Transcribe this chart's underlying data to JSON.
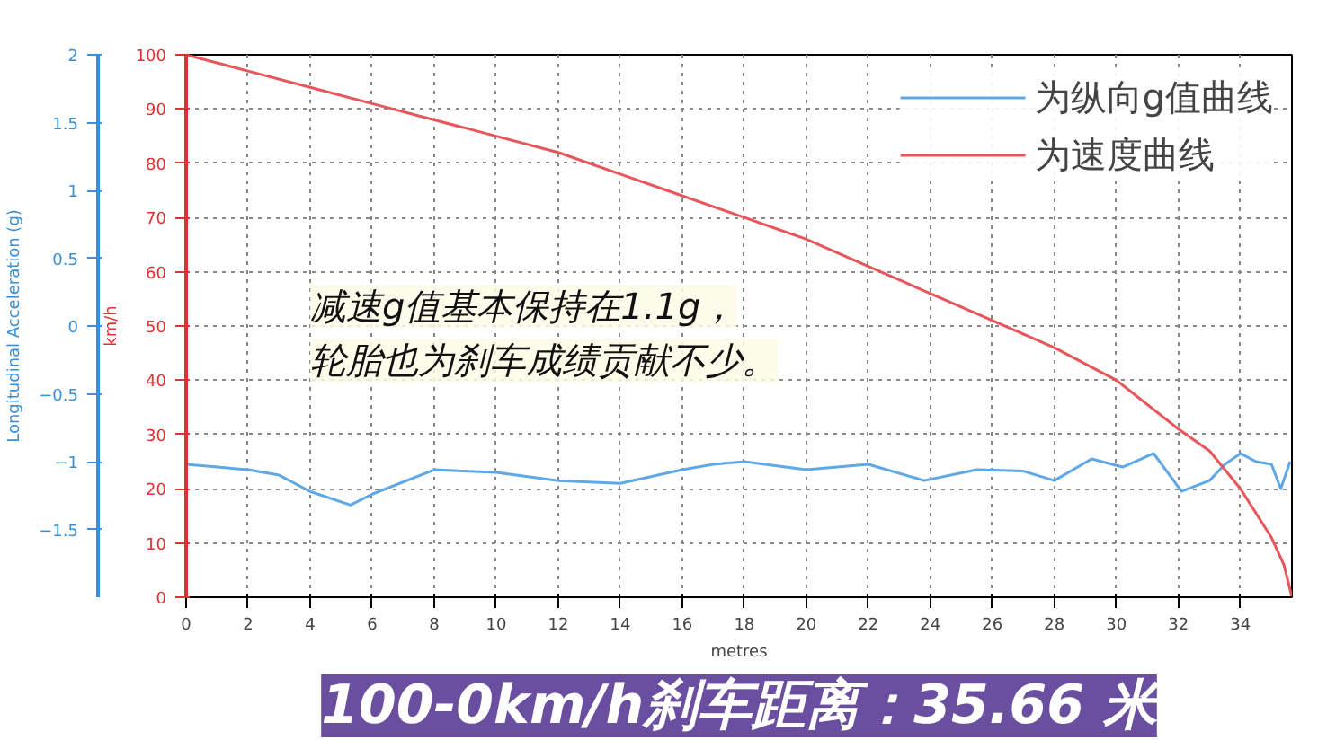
{
  "chart_data": {
    "type": "line",
    "title": "100-0km/h刹车距离：35.66 米",
    "xlabel": "metres",
    "ylabel": "km/h",
    "y2label": "Longitudinal Acceleration (g)",
    "annotations": [
      "减速g值基本保持在1.1g，",
      "轮胎也为刹车成绩贡献不少。"
    ],
    "xlim": [
      0,
      35.66
    ],
    "xticks": [
      0,
      2,
      4,
      6,
      8,
      10,
      12,
      14,
      16,
      18,
      20,
      22,
      24,
      26,
      28,
      30,
      32,
      34
    ],
    "ylim": [
      0,
      100
    ],
    "yticks": [
      0,
      10,
      20,
      30,
      40,
      50,
      60,
      70,
      80,
      90,
      100
    ],
    "y2lim": [
      -2,
      2
    ],
    "y2ticks": [
      -1.5,
      -1,
      -0.5,
      0,
      0.5,
      1,
      1.5,
      2
    ],
    "grid": true,
    "legend": "top right",
    "line_style": "solid",
    "series": [
      {
        "name": "为纵向g值曲线",
        "color": "#5fa8e8",
        "axis": "y2",
        "x": [
          0,
          2,
          3,
          4,
          5.3,
          6,
          8,
          10,
          12,
          14,
          16,
          17,
          18,
          20,
          22,
          23.8,
          25.5,
          27,
          28,
          29.2,
          30.2,
          31.2,
          32.1,
          33,
          33.5,
          34,
          34.5,
          35,
          35.3,
          35.6
        ],
        "values": [
          -1.02,
          -1.06,
          -1.1,
          -1.22,
          -1.32,
          -1.24,
          -1.06,
          -1.08,
          -1.14,
          -1.16,
          -1.06,
          -1.02,
          -1.0,
          -1.06,
          -1.02,
          -1.14,
          -1.06,
          -1.07,
          -1.14,
          -0.98,
          -1.04,
          -0.94,
          -1.22,
          -1.14,
          -1.02,
          -0.94,
          -1.0,
          -1.02,
          -1.2,
          -1.0
        ]
      },
      {
        "name": "为速度曲线",
        "color": "#e8555a",
        "x": [
          0,
          2,
          4,
          6,
          8,
          10,
          12,
          14,
          16,
          18,
          20,
          22,
          24,
          26,
          28,
          30,
          32,
          33,
          34,
          35,
          35.4,
          35.66
        ],
        "values": [
          100,
          97,
          94,
          91,
          88,
          85,
          82,
          78,
          74,
          70,
          66,
          61,
          56,
          51,
          46,
          40,
          31,
          27,
          20,
          11,
          6,
          0
        ]
      }
    ]
  }
}
